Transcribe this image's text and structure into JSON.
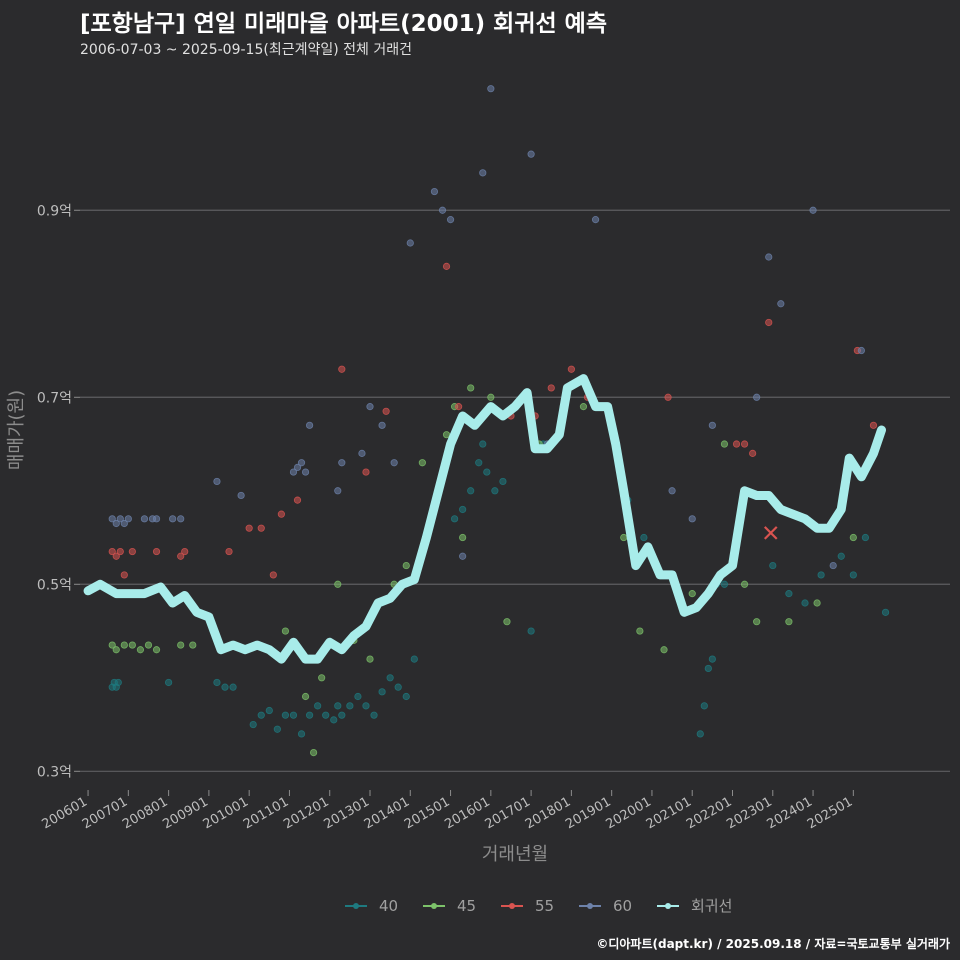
{
  "chart_data": {
    "type": "scatter",
    "title": "[포항남구] 연일 미래마을 아파트(2001) 회귀선 예측",
    "subtitle": "2006-07-03 ~ 2025-09-15(최근계약일) 전체 거래건",
    "xlabel": "거래년월",
    "ylabel": "매매가(원)",
    "x_tick_labels": [
      "200601",
      "200701",
      "200801",
      "200901",
      "201001",
      "201101",
      "201201",
      "201301",
      "201401",
      "201501",
      "201601",
      "201701",
      "201801",
      "201901",
      "202001",
      "202101",
      "202201",
      "202301",
      "202401",
      "202501"
    ],
    "x_ticks": [
      2006,
      2007,
      2008,
      2009,
      2010,
      2011,
      2012,
      2013,
      2014,
      2015,
      2016,
      2017,
      2018,
      2019,
      2020,
      2021,
      2022,
      2023,
      2024,
      2025
    ],
    "xlim": [
      2005.8,
      2027.4
    ],
    "y_ticks": [
      0.3,
      0.5,
      0.7,
      0.9
    ],
    "y_tick_labels": [
      "0.3억",
      "0.5억",
      "0.7억",
      "0.9억"
    ],
    "ylim": [
      0.28,
      1.05
    ],
    "grid": true,
    "legend_position": "bottom",
    "colors": {
      "40": "#1e7a80",
      "45": "#7dc36a",
      "55": "#d95450",
      "60": "#6d82aa",
      "trend": "#a8ecea",
      "background": "#2b2b2d"
    },
    "series": [
      {
        "name": "40",
        "color": "#1e7a80",
        "points": [
          [
            2006.6,
            0.39
          ],
          [
            2006.65,
            0.395
          ],
          [
            2006.7,
            0.39
          ],
          [
            2006.75,
            0.395
          ],
          [
            2008.0,
            0.395
          ],
          [
            2009.2,
            0.395
          ],
          [
            2009.4,
            0.39
          ],
          [
            2009.6,
            0.39
          ],
          [
            2010.1,
            0.35
          ],
          [
            2010.3,
            0.36
          ],
          [
            2010.5,
            0.365
          ],
          [
            2010.7,
            0.345
          ],
          [
            2010.9,
            0.36
          ],
          [
            2011.1,
            0.36
          ],
          [
            2011.3,
            0.34
          ],
          [
            2011.5,
            0.36
          ],
          [
            2011.7,
            0.37
          ],
          [
            2011.9,
            0.36
          ],
          [
            2012.1,
            0.355
          ],
          [
            2012.2,
            0.37
          ],
          [
            2012.3,
            0.36
          ],
          [
            2012.5,
            0.37
          ],
          [
            2012.7,
            0.38
          ],
          [
            2012.9,
            0.37
          ],
          [
            2013.1,
            0.36
          ],
          [
            2013.3,
            0.385
          ],
          [
            2013.5,
            0.4
          ],
          [
            2013.7,
            0.39
          ],
          [
            2013.9,
            0.38
          ],
          [
            2014.1,
            0.42
          ],
          [
            2015.1,
            0.57
          ],
          [
            2015.3,
            0.58
          ],
          [
            2015.5,
            0.6
          ],
          [
            2015.7,
            0.63
          ],
          [
            2015.8,
            0.65
          ],
          [
            2015.9,
            0.62
          ],
          [
            2016.1,
            0.6
          ],
          [
            2016.3,
            0.61
          ],
          [
            2017.0,
            0.45
          ],
          [
            2017.3,
            0.65
          ],
          [
            2019.4,
            0.59
          ],
          [
            2019.8,
            0.55
          ],
          [
            2021.2,
            0.34
          ],
          [
            2021.3,
            0.37
          ],
          [
            2021.4,
            0.41
          ],
          [
            2021.5,
            0.42
          ],
          [
            2021.6,
            0.5
          ],
          [
            2021.8,
            0.5
          ],
          [
            2023.0,
            0.52
          ],
          [
            2023.4,
            0.49
          ],
          [
            2023.8,
            0.48
          ],
          [
            2024.2,
            0.51
          ],
          [
            2024.7,
            0.53
          ],
          [
            2025.0,
            0.51
          ],
          [
            2025.3,
            0.55
          ],
          [
            2025.6,
            0.65
          ],
          [
            2025.8,
            0.47
          ]
        ]
      },
      {
        "name": "45",
        "color": "#7dc36a",
        "points": [
          [
            2006.6,
            0.435
          ],
          [
            2006.7,
            0.43
          ],
          [
            2006.9,
            0.435
          ],
          [
            2007.1,
            0.435
          ],
          [
            2007.3,
            0.43
          ],
          [
            2007.5,
            0.435
          ],
          [
            2007.7,
            0.43
          ],
          [
            2008.3,
            0.435
          ],
          [
            2008.6,
            0.435
          ],
          [
            2010.9,
            0.45
          ],
          [
            2011.4,
            0.38
          ],
          [
            2011.6,
            0.32
          ],
          [
            2011.8,
            0.4
          ],
          [
            2012.2,
            0.5
          ],
          [
            2012.6,
            0.44
          ],
          [
            2013.0,
            0.42
          ],
          [
            2013.6,
            0.5
          ],
          [
            2013.9,
            0.52
          ],
          [
            2014.3,
            0.63
          ],
          [
            2014.9,
            0.66
          ],
          [
            2015.1,
            0.69
          ],
          [
            2015.3,
            0.55
          ],
          [
            2015.5,
            0.71
          ],
          [
            2015.8,
            0.68
          ],
          [
            2016.0,
            0.7
          ],
          [
            2016.4,
            0.46
          ],
          [
            2017.2,
            0.65
          ],
          [
            2017.8,
            0.69
          ],
          [
            2018.3,
            0.69
          ],
          [
            2019.3,
            0.55
          ],
          [
            2019.7,
            0.45
          ],
          [
            2020.3,
            0.43
          ],
          [
            2021.0,
            0.49
          ],
          [
            2021.8,
            0.65
          ],
          [
            2022.3,
            0.5
          ],
          [
            2022.6,
            0.46
          ],
          [
            2023.4,
            0.46
          ],
          [
            2024.1,
            0.48
          ],
          [
            2025.0,
            0.55
          ]
        ]
      },
      {
        "name": "55",
        "color": "#d95450",
        "points": [
          [
            2006.6,
            0.535
          ],
          [
            2006.7,
            0.53
          ],
          [
            2006.8,
            0.535
          ],
          [
            2006.9,
            0.51
          ],
          [
            2007.1,
            0.535
          ],
          [
            2007.7,
            0.535
          ],
          [
            2008.3,
            0.53
          ],
          [
            2008.4,
            0.535
          ],
          [
            2009.5,
            0.535
          ],
          [
            2010.0,
            0.56
          ],
          [
            2010.3,
            0.56
          ],
          [
            2010.6,
            0.51
          ],
          [
            2010.8,
            0.575
          ],
          [
            2011.2,
            0.59
          ],
          [
            2012.3,
            0.73
          ],
          [
            2012.9,
            0.62
          ],
          [
            2013.4,
            0.685
          ],
          [
            2014.9,
            0.84
          ],
          [
            2015.2,
            0.69
          ],
          [
            2016.0,
            0.69
          ],
          [
            2016.5,
            0.68
          ],
          [
            2017.1,
            0.68
          ],
          [
            2017.5,
            0.71
          ],
          [
            2018.0,
            0.73
          ],
          [
            2018.4,
            0.7
          ],
          [
            2020.4,
            0.7
          ],
          [
            2022.1,
            0.65
          ],
          [
            2022.3,
            0.65
          ],
          [
            2022.5,
            0.64
          ],
          [
            2022.9,
            0.78
          ],
          [
            2025.1,
            0.75
          ],
          [
            2025.5,
            0.67
          ]
        ]
      },
      {
        "name": "60",
        "color": "#6d82aa",
        "points": [
          [
            2006.6,
            0.57
          ],
          [
            2006.7,
            0.565
          ],
          [
            2006.8,
            0.57
          ],
          [
            2006.9,
            0.565
          ],
          [
            2007.0,
            0.57
          ],
          [
            2007.4,
            0.57
          ],
          [
            2007.6,
            0.57
          ],
          [
            2007.7,
            0.57
          ],
          [
            2008.1,
            0.57
          ],
          [
            2008.3,
            0.57
          ],
          [
            2009.2,
            0.61
          ],
          [
            2009.8,
            0.595
          ],
          [
            2011.1,
            0.62
          ],
          [
            2011.2,
            0.625
          ],
          [
            2011.3,
            0.63
          ],
          [
            2011.4,
            0.62
          ],
          [
            2011.5,
            0.67
          ],
          [
            2012.2,
            0.6
          ],
          [
            2012.3,
            0.63
          ],
          [
            2012.8,
            0.64
          ],
          [
            2013.0,
            0.69
          ],
          [
            2013.3,
            0.67
          ],
          [
            2013.6,
            0.63
          ],
          [
            2014.0,
            0.865
          ],
          [
            2014.6,
            0.92
          ],
          [
            2014.8,
            0.9
          ],
          [
            2015.0,
            0.89
          ],
          [
            2015.3,
            0.53
          ],
          [
            2015.8,
            0.94
          ],
          [
            2016.0,
            1.03
          ],
          [
            2017.0,
            0.96
          ],
          [
            2017.4,
            0.65
          ],
          [
            2018.6,
            0.89
          ],
          [
            2020.5,
            0.6
          ],
          [
            2021.0,
            0.57
          ],
          [
            2021.5,
            0.67
          ],
          [
            2022.6,
            0.7
          ],
          [
            2022.9,
            0.85
          ],
          [
            2023.2,
            0.8
          ],
          [
            2024.0,
            0.9
          ],
          [
            2024.5,
            0.52
          ],
          [
            2025.2,
            0.75
          ]
        ]
      }
    ],
    "trend_name": "회귀선",
    "trend": [
      [
        2006.0,
        0.493
      ],
      [
        2006.3,
        0.5
      ],
      [
        2006.7,
        0.49
      ],
      [
        2007.0,
        0.49
      ],
      [
        2007.4,
        0.49
      ],
      [
        2007.8,
        0.497
      ],
      [
        2008.1,
        0.48
      ],
      [
        2008.4,
        0.488
      ],
      [
        2008.7,
        0.47
      ],
      [
        2009.0,
        0.465
      ],
      [
        2009.3,
        0.43
      ],
      [
        2009.6,
        0.435
      ],
      [
        2009.9,
        0.43
      ],
      [
        2010.2,
        0.435
      ],
      [
        2010.5,
        0.43
      ],
      [
        2010.8,
        0.42
      ],
      [
        2011.1,
        0.438
      ],
      [
        2011.4,
        0.42
      ],
      [
        2011.7,
        0.42
      ],
      [
        2012.0,
        0.438
      ],
      [
        2012.3,
        0.43
      ],
      [
        2012.6,
        0.445
      ],
      [
        2012.9,
        0.455
      ],
      [
        2013.2,
        0.48
      ],
      [
        2013.5,
        0.485
      ],
      [
        2013.8,
        0.5
      ],
      [
        2014.1,
        0.505
      ],
      [
        2014.4,
        0.55
      ],
      [
        2014.7,
        0.6
      ],
      [
        2015.0,
        0.65
      ],
      [
        2015.3,
        0.68
      ],
      [
        2015.6,
        0.67
      ],
      [
        2016.0,
        0.69
      ],
      [
        2016.3,
        0.68
      ],
      [
        2016.6,
        0.69
      ],
      [
        2016.9,
        0.705
      ],
      [
        2017.1,
        0.645
      ],
      [
        2017.4,
        0.645
      ],
      [
        2017.7,
        0.66
      ],
      [
        2017.9,
        0.71
      ],
      [
        2018.3,
        0.72
      ],
      [
        2018.6,
        0.69
      ],
      [
        2018.9,
        0.69
      ],
      [
        2019.1,
        0.65
      ],
      [
        2019.3,
        0.6
      ],
      [
        2019.6,
        0.52
      ],
      [
        2019.9,
        0.54
      ],
      [
        2020.2,
        0.51
      ],
      [
        2020.5,
        0.51
      ],
      [
        2020.8,
        0.47
      ],
      [
        2021.1,
        0.475
      ],
      [
        2021.4,
        0.49
      ],
      [
        2021.7,
        0.51
      ],
      [
        2022.0,
        0.52
      ],
      [
        2022.3,
        0.6
      ],
      [
        2022.6,
        0.595
      ],
      [
        2022.9,
        0.595
      ],
      [
        2023.2,
        0.58
      ],
      [
        2023.5,
        0.575
      ],
      [
        2023.8,
        0.57
      ],
      [
        2024.1,
        0.56
      ],
      [
        2024.4,
        0.56
      ],
      [
        2024.7,
        0.58
      ],
      [
        2024.9,
        0.635
      ],
      [
        2025.2,
        0.615
      ],
      [
        2025.5,
        0.64
      ],
      [
        2025.7,
        0.665
      ]
    ],
    "annotations": [
      {
        "type": "cross",
        "x": 2022.95,
        "y": 0.555,
        "color": "#d95450"
      }
    ]
  },
  "footer": {
    "source": "©디아파트(dapt.kr) / 2025.09.18 / 자료=국토교통부 실거래가"
  }
}
